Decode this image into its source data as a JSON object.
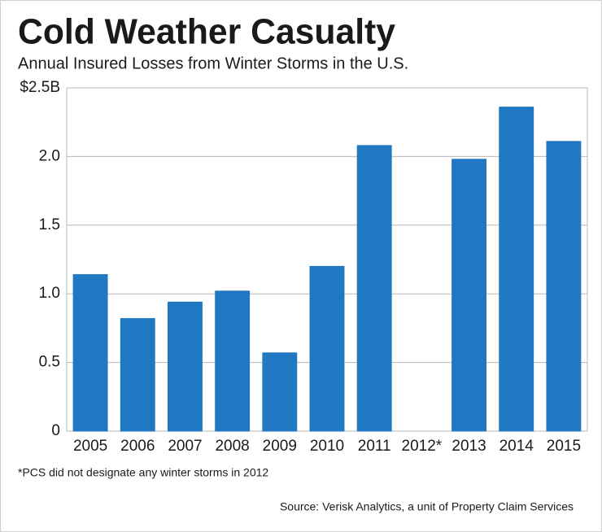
{
  "chart_data": {
    "type": "bar",
    "title": "Cold Weather Casualty",
    "subtitle": "Annual Insured Losses from Winter Storms in the U.S.",
    "categories": [
      "2005",
      "2006",
      "2007",
      "2008",
      "2009",
      "2010",
      "2011",
      "2012*",
      "2013",
      "2014",
      "2015"
    ],
    "values": [
      1.14,
      0.82,
      0.94,
      1.02,
      0.57,
      1.2,
      2.08,
      0,
      1.98,
      2.36,
      2.11
    ],
    "color": "#1f78c1",
    "ylim": [
      0,
      2.5
    ],
    "yticks": [
      0,
      0.5,
      {
        "value": 1,
        "label": "1.0"
      },
      1.5,
      {
        "value": 2,
        "label": "2.0"
      },
      {
        "value": 2.5,
        "label": "$2.5B"
      }
    ],
    "grid": true,
    "footnote": "*PCS did not designate any winter storms in 2012",
    "source": "Source: Verisk Analytics, a unit of Property Claim Services"
  }
}
